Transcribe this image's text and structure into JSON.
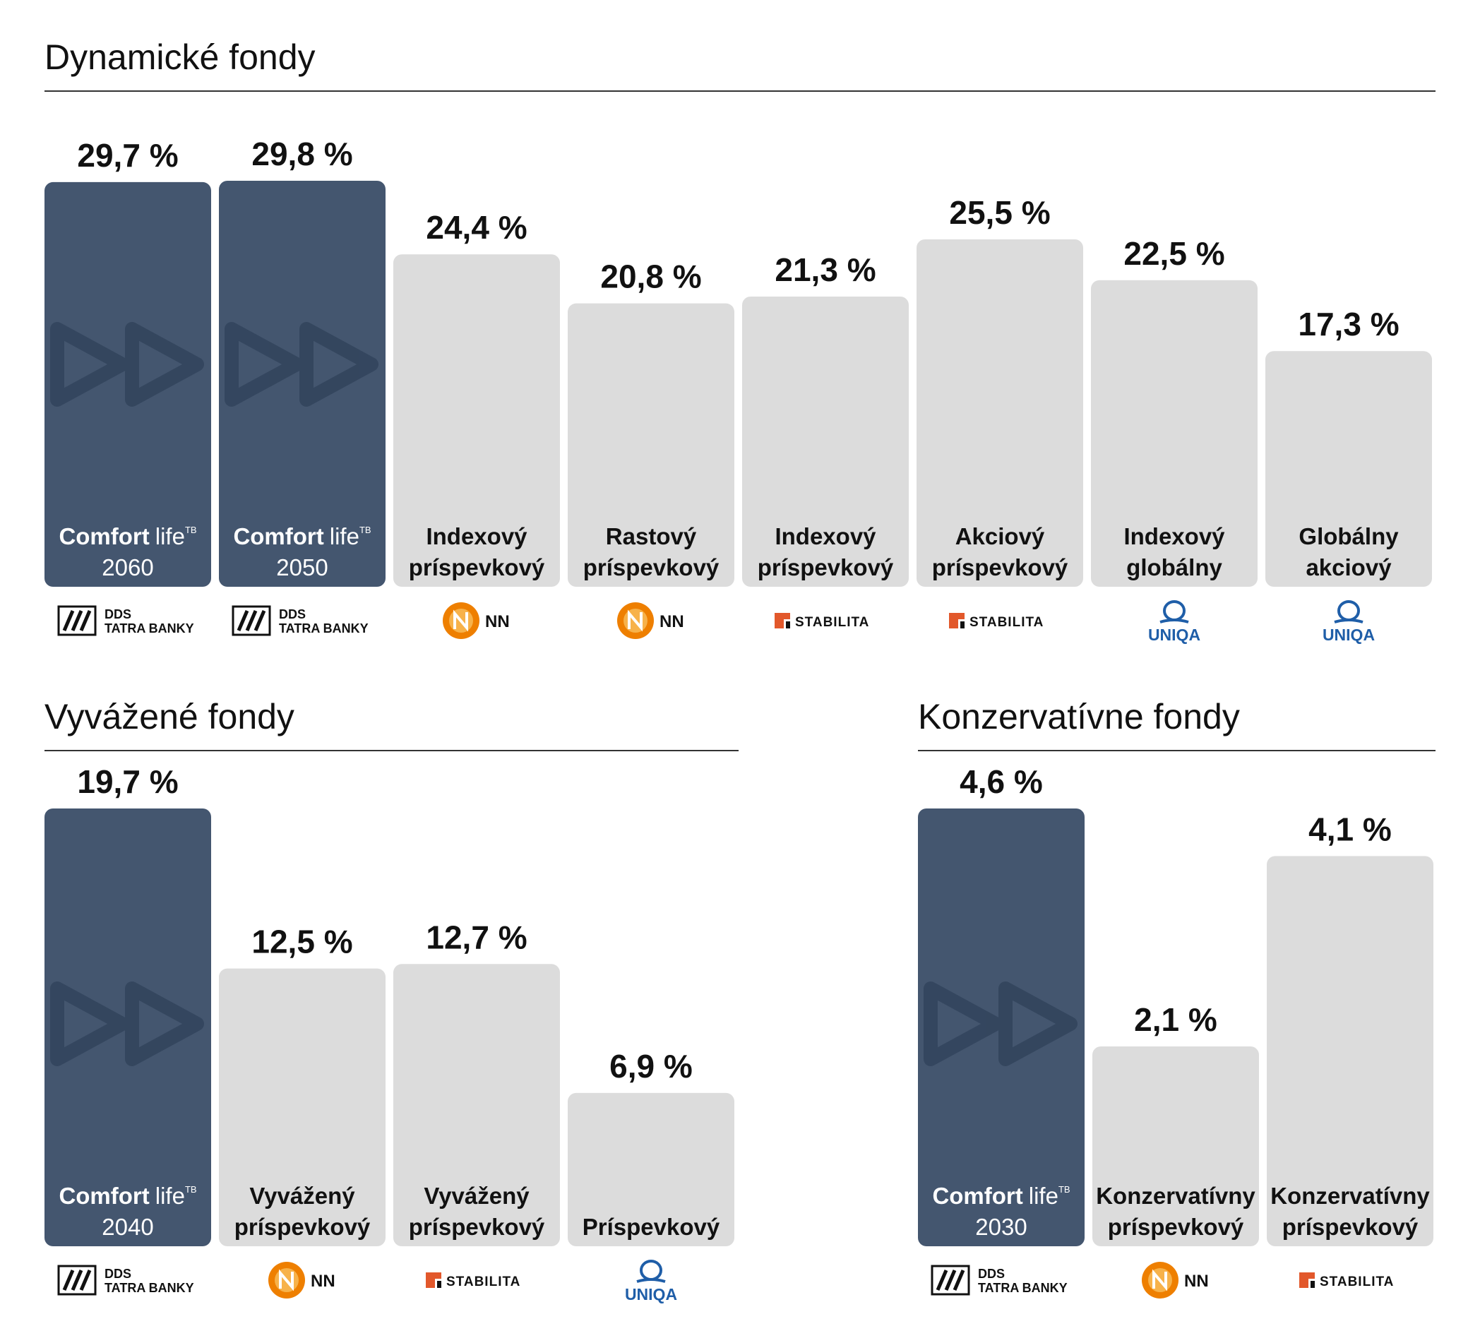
{
  "colors": {
    "highlight_bar": "#44566f",
    "other_bar": "#dcdcdc",
    "arrow_motif": "#33455d",
    "highlight_text": "#ffffff",
    "other_text": "#111111",
    "nn_orange": "#ee7f00",
    "stabilita_orange": "#e2582b",
    "uniqa_blue": "#1f5ea8"
  },
  "logos": {
    "dds": {
      "line1": "DDS",
      "line2": "TATRA BANKY"
    },
    "nn": {
      "text": "NN"
    },
    "stabilita": {
      "text": "STABILITA"
    },
    "uniqa": {
      "text": "UNIQA"
    }
  },
  "sections": [
    {
      "id": "dynamic",
      "title": "Dynamické fondy",
      "chart_data": {
        "type": "bar",
        "unit": "%",
        "categories": [
          "Comfort life 2060",
          "Comfort life 2050",
          "Indexový príspevkový",
          "Rastový príspevkový",
          "Indexový príspevkový",
          "Akciový príspevkový",
          "Indexový globálny",
          "Globálny akciový"
        ],
        "values": [
          29.7,
          29.8,
          24.4,
          20.8,
          21.3,
          25.5,
          22.5,
          17.3
        ],
        "bars": [
          {
            "value": 29.7,
            "value_label": "29,7 %",
            "line1": "Comfort",
            "line1b": "life",
            "sup": "TB",
            "line2": "2060",
            "provider": "dds",
            "highlight": true
          },
          {
            "value": 29.8,
            "value_label": "29,8 %",
            "line1": "Comfort",
            "line1b": "life",
            "sup": "TB",
            "line2": "2050",
            "provider": "dds",
            "highlight": true
          },
          {
            "value": 24.4,
            "value_label": "24,4 %",
            "line1": "Indexový",
            "line2": "príspevkový",
            "provider": "nn",
            "highlight": false
          },
          {
            "value": 20.8,
            "value_label": "20,8 %",
            "line1": "Rastový",
            "line2": "príspevkový",
            "provider": "nn",
            "highlight": false
          },
          {
            "value": 21.3,
            "value_label": "21,3 %",
            "line1": "Indexový",
            "line2": "príspevkový",
            "provider": "stabilita",
            "highlight": false
          },
          {
            "value": 25.5,
            "value_label": "25,5 %",
            "line1": "Akciový",
            "line2": "príspevkový",
            "provider": "stabilita",
            "highlight": false
          },
          {
            "value": 22.5,
            "value_label": "22,5 %",
            "line1": "Indexový",
            "line2": "globálny",
            "provider": "uniqa",
            "highlight": false
          },
          {
            "value": 17.3,
            "value_label": "17,3 %",
            "line1": "Globálny",
            "line2": "akciový",
            "provider": "uniqa",
            "highlight": false
          }
        ]
      }
    },
    {
      "id": "balanced",
      "title": "Vyvážené fondy",
      "chart_data": {
        "type": "bar",
        "unit": "%",
        "categories": [
          "Comfort life 2040",
          "Vyvážený príspevkový",
          "Vyvážený príspevkový",
          "Príspevkový"
        ],
        "values": [
          19.7,
          12.5,
          12.7,
          6.9
        ],
        "bars": [
          {
            "value": 19.7,
            "value_label": "19,7 %",
            "line1": "Comfort",
            "line1b": "life",
            "sup": "TB",
            "line2": "2040",
            "provider": "dds",
            "highlight": true
          },
          {
            "value": 12.5,
            "value_label": "12,5 %",
            "line1": "Vyvážený",
            "line2": "príspevkový",
            "provider": "nn",
            "highlight": false
          },
          {
            "value": 12.7,
            "value_label": "12,7 %",
            "line1": "Vyvážený",
            "line2": "príspevkový",
            "provider": "stabilita",
            "highlight": false
          },
          {
            "value": 6.9,
            "value_label": "6,9 %",
            "line1": "",
            "line2": "Príspevkový",
            "provider": "uniqa",
            "highlight": false
          }
        ]
      }
    },
    {
      "id": "conservative",
      "title": "Konzervatívne fondy",
      "chart_data": {
        "type": "bar",
        "unit": "%",
        "categories": [
          "Comfort life 2030",
          "Konzervatívny príspevkový",
          "Konzervatívny príspevkový"
        ],
        "values": [
          4.6,
          2.1,
          4.1
        ],
        "bars": [
          {
            "value": 4.6,
            "value_label": "4,6 %",
            "line1": "Comfort",
            "line1b": "life",
            "sup": "TB",
            "line2": "2030",
            "provider": "dds",
            "highlight": true
          },
          {
            "value": 2.1,
            "value_label": "2,1 %",
            "line1": "Konzervatívny",
            "line2": "príspevkový",
            "provider": "nn",
            "highlight": false
          },
          {
            "value": 4.1,
            "value_label": "4,1 %",
            "line1": "Konzervatívny",
            "line2": "príspevkový",
            "provider": "stabilita",
            "highlight": false
          }
        ]
      }
    }
  ]
}
